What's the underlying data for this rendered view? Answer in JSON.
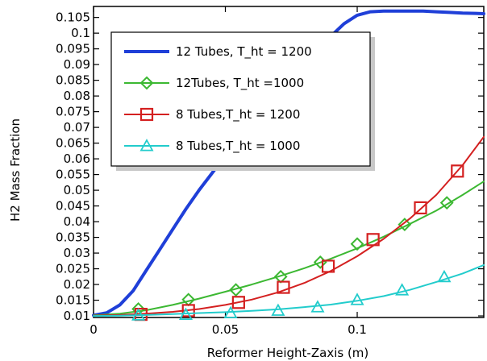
{
  "chart_data": {
    "type": "line",
    "title": "",
    "xlabel": "Reformer Height-Zaxis (m)",
    "ylabel": "H2 Mass Fraction",
    "xlim": [
      0,
      0.148
    ],
    "ylim": [
      0.0095,
      0.1085
    ],
    "x_ticks": [
      0,
      0.05,
      0.1
    ],
    "x_tick_labels": [
      "0",
      "0.05",
      "0.1"
    ],
    "y_ticks": [
      0.01,
      0.015,
      0.02,
      0.025,
      0.03,
      0.035,
      0.04,
      0.045,
      0.05,
      0.055,
      0.06,
      0.065,
      0.07,
      0.075,
      0.08,
      0.085,
      0.09,
      0.095,
      0.1,
      0.105
    ],
    "y_tick_labels": [
      "0.01",
      "0.015",
      "0.02",
      "0.025",
      "0.03",
      "0.035",
      "0.04",
      "0.045",
      "0.05",
      "0.055",
      "0.06",
      "0.065",
      "0.07",
      "0.075",
      "0.08",
      "0.085",
      "0.09",
      "0.095",
      "0.1",
      "0.105"
    ],
    "grid": false,
    "legend_position": "top-left",
    "series": [
      {
        "name": "12 Tubes, T_ht = 1200",
        "color": "#1f3fd8",
        "marker": "none",
        "line_width": 4,
        "x": [
          0,
          0.005,
          0.01,
          0.015,
          0.02,
          0.025,
          0.03,
          0.035,
          0.04,
          0.045,
          0.05,
          0.055,
          0.06,
          0.065,
          0.07,
          0.075,
          0.08,
          0.085,
          0.09,
          0.095,
          0.1,
          0.105,
          0.11,
          0.115,
          0.12,
          0.125,
          0.13,
          0.135,
          0.14,
          0.145,
          0.148
        ],
        "y": [
          0.0102,
          0.011,
          0.0135,
          0.018,
          0.0245,
          0.031,
          0.0375,
          0.044,
          0.05,
          0.0555,
          0.061,
          0.066,
          0.0705,
          0.0755,
          0.08,
          0.0845,
          0.0895,
          0.0945,
          0.099,
          0.103,
          0.1057,
          0.1068,
          0.107,
          0.107,
          0.107,
          0.107,
          0.1068,
          0.1066,
          0.1064,
          0.1063,
          0.1062
        ]
      },
      {
        "name": "12Tubes, T_ht =1000",
        "color": "#3cb832",
        "marker": "diamond",
        "line_width": 2,
        "x": [
          0,
          0.01,
          0.02,
          0.03,
          0.04,
          0.05,
          0.06,
          0.07,
          0.08,
          0.09,
          0.1,
          0.11,
          0.12,
          0.13,
          0.14,
          0.148
        ],
        "y": [
          0.0102,
          0.0107,
          0.0118,
          0.0135,
          0.0155,
          0.0177,
          0.02,
          0.0225,
          0.0252,
          0.0282,
          0.0315,
          0.0352,
          0.0393,
          0.0435,
          0.0485,
          0.0528
        ],
        "marker_x": [
          0.017,
          0.036,
          0.054,
          0.071,
          0.086,
          0.1,
          0.118,
          0.134
        ],
        "marker_y": [
          0.0122,
          0.0152,
          0.0183,
          0.0225,
          0.0271,
          0.0329,
          0.0391,
          0.046
        ]
      },
      {
        "name": "8 Tubes,T_ht = 1200",
        "color": "#d42020",
        "marker": "square",
        "line_width": 2,
        "x": [
          0,
          0.01,
          0.02,
          0.03,
          0.04,
          0.05,
          0.06,
          0.07,
          0.08,
          0.09,
          0.1,
          0.11,
          0.12,
          0.13,
          0.14,
          0.148
        ],
        "y": [
          0.0101,
          0.0103,
          0.0107,
          0.0113,
          0.0122,
          0.0135,
          0.0152,
          0.0175,
          0.0205,
          0.0243,
          0.029,
          0.0345,
          0.041,
          0.0485,
          0.058,
          0.067
        ],
        "marker_x": [
          0.018,
          0.036,
          0.055,
          0.072,
          0.089,
          0.106,
          0.124,
          0.138
        ],
        "marker_y": [
          0.0105,
          0.0117,
          0.0143,
          0.0191,
          0.0258,
          0.0343,
          0.0444,
          0.0561
        ]
      },
      {
        "name": "8 Tubes,T_ht = 1000",
        "color": "#22cccc",
        "marker": "triangle",
        "line_width": 2,
        "x": [
          0,
          0.01,
          0.02,
          0.03,
          0.04,
          0.05,
          0.06,
          0.07,
          0.08,
          0.09,
          0.1,
          0.11,
          0.12,
          0.13,
          0.14,
          0.148
        ],
        "y": [
          0.01,
          0.0101,
          0.0103,
          0.0106,
          0.0109,
          0.0112,
          0.0116,
          0.0121,
          0.0128,
          0.0136,
          0.0148,
          0.0163,
          0.0183,
          0.0208,
          0.0235,
          0.0262
        ],
        "marker_x": [
          0.017,
          0.035,
          0.052,
          0.07,
          0.085,
          0.1,
          0.117,
          0.133
        ],
        "marker_y": [
          0.0102,
          0.0104,
          0.0109,
          0.0117,
          0.0128,
          0.0151,
          0.0182,
          0.0224
        ]
      }
    ]
  }
}
